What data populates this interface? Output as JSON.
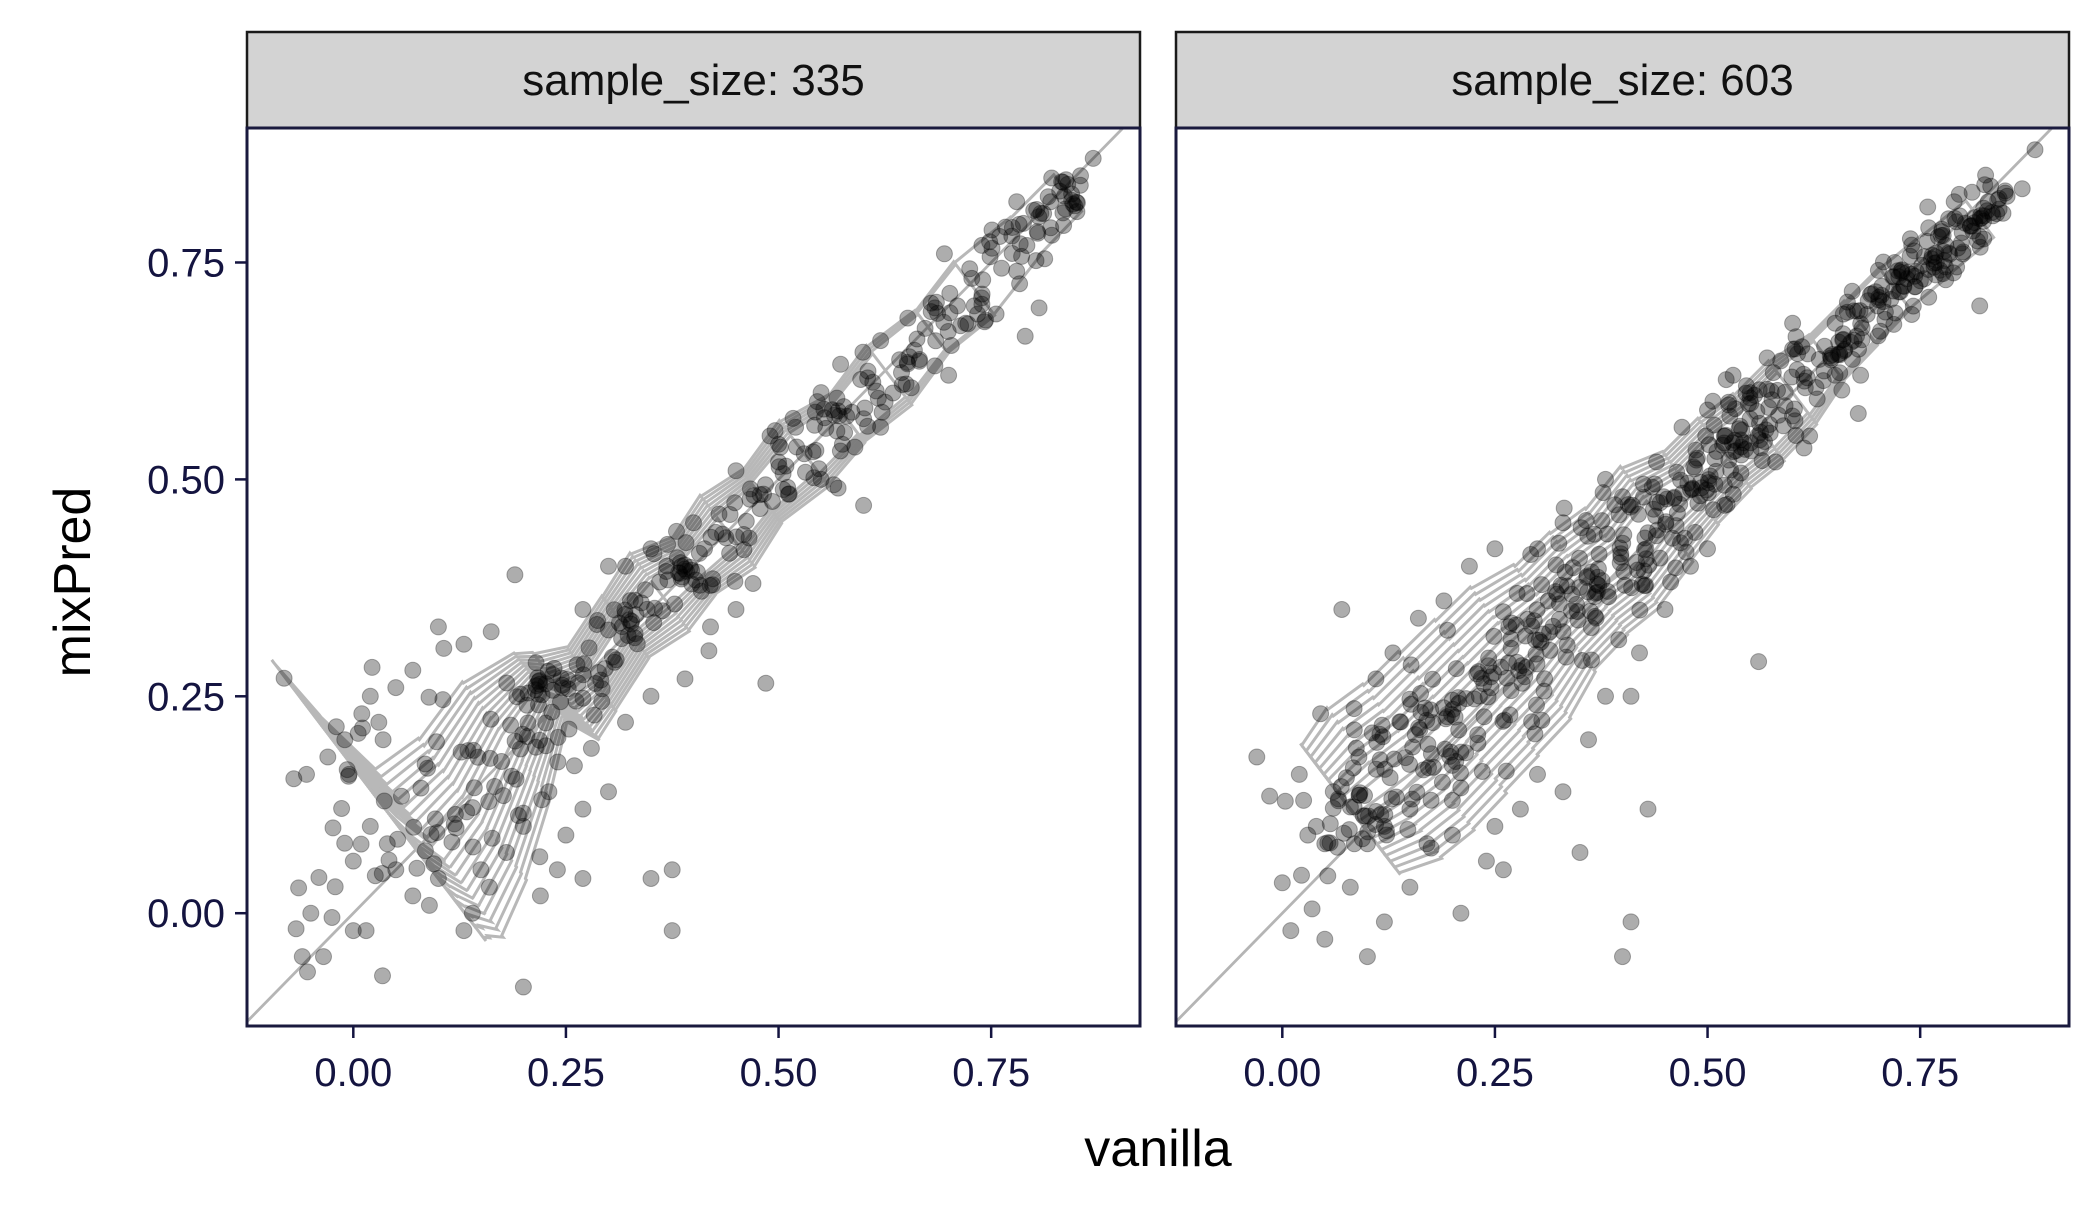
{
  "chart_data": {
    "type": "scatter",
    "facet_variable": "sample_size",
    "xlabel": "vanilla",
    "ylabel": "mixPred",
    "xlim": [
      -0.125,
      0.925
    ],
    "ylim": [
      -0.13,
      0.905
    ],
    "x_ticks": [
      0.0,
      0.25,
      0.5,
      0.75
    ],
    "x_tick_labels": [
      "0.00",
      "0.25",
      "0.50",
      "0.75"
    ],
    "y_ticks": [
      0.0,
      0.25,
      0.5,
      0.75
    ],
    "y_tick_labels": [
      "0.00",
      "0.25",
      "0.50",
      "0.75"
    ],
    "grid": false,
    "reference_line": "y = x",
    "overlay": "2d density contours",
    "colors": {
      "points": "#000000",
      "contours": "#b8b8b8",
      "strip_fill": "#d3d3d3",
      "reference_line": "#b5b5b5"
    },
    "panels": [
      {
        "strip_label": "sample_size: 335",
        "cluster": [
          [
            0.03,
            0.13,
            0.1
          ],
          [
            0.06,
            0.1,
            0.08
          ],
          [
            0.1,
            0.07,
            0.06
          ],
          [
            0.14,
            0.12,
            0.05
          ],
          [
            0.18,
            0.2,
            0.04
          ],
          [
            0.22,
            0.26,
            0.02
          ],
          [
            0.25,
            0.25,
            0.03
          ],
          [
            0.28,
            0.27,
            0.02
          ],
          [
            0.32,
            0.33,
            0.02
          ],
          [
            0.36,
            0.37,
            0.03
          ],
          [
            0.4,
            0.4,
            0.02
          ],
          [
            0.44,
            0.44,
            0.03
          ],
          [
            0.48,
            0.48,
            0.02
          ],
          [
            0.53,
            0.53,
            0.03
          ],
          [
            0.58,
            0.57,
            0.02
          ],
          [
            0.63,
            0.62,
            0.03
          ],
          [
            0.68,
            0.67,
            0.02
          ],
          [
            0.73,
            0.72,
            0.03
          ],
          [
            0.79,
            0.78,
            0.02
          ],
          [
            0.84,
            0.83,
            0.02
          ]
        ],
        "points": [
          [
            -0.07,
            0.155
          ],
          [
            -0.055,
            0.16
          ],
          [
            -0.06,
            -0.05
          ],
          [
            -0.05,
            0.0
          ],
          [
            -0.035,
            -0.05
          ],
          [
            -0.03,
            0.18
          ],
          [
            -0.02,
            0.215
          ],
          [
            -0.025,
            -0.005
          ],
          [
            -0.01,
            0.2
          ],
          [
            -0.005,
            0.16
          ],
          [
            0.0,
            0.06
          ],
          [
            0.0,
            -0.02
          ],
          [
            0.01,
            0.23
          ],
          [
            0.015,
            -0.02
          ],
          [
            0.02,
            0.25
          ],
          [
            0.03,
            0.22
          ],
          [
            0.05,
            0.26
          ],
          [
            0.07,
            0.28
          ],
          [
            0.1,
            0.33
          ],
          [
            0.13,
            0.31
          ],
          [
            0.19,
            0.39
          ],
          [
            0.14,
            0.0
          ],
          [
            0.13,
            -0.02
          ],
          [
            0.16,
            0.03
          ],
          [
            0.22,
            0.02
          ],
          [
            0.24,
            0.05
          ],
          [
            0.27,
            0.04
          ],
          [
            0.35,
            0.04
          ],
          [
            0.375,
            0.05
          ],
          [
            0.375,
            -0.02
          ],
          [
            0.2,
            -0.085
          ],
          [
            0.485,
            0.265
          ],
          [
            0.79,
            0.665
          ],
          [
            0.73,
            0.7
          ],
          [
            0.695,
            0.76
          ],
          [
            0.76,
            0.78
          ],
          [
            0.78,
            0.82
          ],
          [
            0.8,
            0.81
          ],
          [
            0.82,
            0.82
          ],
          [
            0.84,
            0.84
          ],
          [
            0.855,
            0.85
          ],
          [
            0.87,
            0.87
          ],
          [
            0.6,
            0.47
          ],
          [
            0.6,
            0.57
          ],
          [
            0.62,
            0.66
          ],
          [
            0.55,
            0.5
          ],
          [
            0.5,
            0.52
          ],
          [
            0.45,
            0.51
          ],
          [
            0.43,
            0.46
          ],
          [
            0.4,
            0.45
          ],
          [
            0.38,
            0.44
          ],
          [
            0.35,
            0.42
          ],
          [
            0.32,
            0.4
          ],
          [
            0.3,
            0.4
          ],
          [
            0.27,
            0.35
          ],
          [
            0.42,
            0.33
          ],
          [
            0.45,
            0.35
          ],
          [
            0.47,
            0.38
          ],
          [
            0.39,
            0.27
          ],
          [
            0.35,
            0.25
          ],
          [
            0.32,
            0.22
          ],
          [
            0.28,
            0.19
          ],
          [
            0.26,
            0.17
          ],
          [
            0.23,
            0.14
          ],
          [
            0.3,
            0.14
          ],
          [
            0.27,
            0.12
          ],
          [
            0.25,
            0.09
          ],
          [
            0.2,
            0.1
          ],
          [
            0.18,
            0.07
          ],
          [
            0.15,
            0.05
          ],
          [
            0.1,
            0.04
          ],
          [
            0.07,
            0.02
          ],
          [
            0.05,
            0.05
          ],
          [
            0.04,
            0.08
          ],
          [
            0.02,
            0.1
          ],
          [
            0.035,
            0.2
          ],
          [
            0.55,
            0.6
          ],
          [
            0.52,
            0.56
          ],
          [
            0.49,
            0.55
          ],
          [
            0.57,
            0.49
          ],
          [
            0.62,
            0.56
          ],
          [
            0.65,
            0.61
          ],
          [
            0.7,
            0.62
          ],
          [
            0.72,
            0.68
          ],
          [
            0.74,
            0.73
          ],
          [
            0.78,
            0.74
          ],
          [
            0.82,
            0.79
          ]
        ]
      },
      {
        "strip_label": "sample_size: 603",
        "cluster": [
          [
            0.08,
            0.12,
            0.04
          ],
          [
            0.12,
            0.15,
            0.05
          ],
          [
            0.16,
            0.18,
            0.05
          ],
          [
            0.2,
            0.22,
            0.05
          ],
          [
            0.24,
            0.26,
            0.05
          ],
          [
            0.28,
            0.3,
            0.05
          ],
          [
            0.32,
            0.34,
            0.04
          ],
          [
            0.36,
            0.38,
            0.04
          ],
          [
            0.4,
            0.41,
            0.04
          ],
          [
            0.44,
            0.46,
            0.04
          ],
          [
            0.48,
            0.49,
            0.03
          ],
          [
            0.52,
            0.53,
            0.03
          ],
          [
            0.56,
            0.56,
            0.03
          ],
          [
            0.6,
            0.6,
            0.03
          ],
          [
            0.64,
            0.64,
            0.02
          ],
          [
            0.68,
            0.68,
            0.02
          ],
          [
            0.72,
            0.72,
            0.02
          ],
          [
            0.77,
            0.76,
            0.02
          ],
          [
            0.82,
            0.8,
            0.02
          ]
        ],
        "points": [
          [
            -0.03,
            0.18
          ],
          [
            -0.015,
            0.135
          ],
          [
            0.0,
            0.035
          ],
          [
            0.01,
            -0.02
          ],
          [
            0.02,
            0.16
          ],
          [
            0.025,
            0.13
          ],
          [
            0.03,
            0.09
          ],
          [
            0.035,
            0.005
          ],
          [
            0.045,
            0.23
          ],
          [
            0.05,
            0.08
          ],
          [
            0.05,
            -0.03
          ],
          [
            0.07,
            0.35
          ],
          [
            0.08,
            0.03
          ],
          [
            0.1,
            -0.05
          ],
          [
            0.12,
            -0.01
          ],
          [
            0.15,
            0.03
          ],
          [
            0.17,
            0.08
          ],
          [
            0.2,
            0.09
          ],
          [
            0.21,
            0.0
          ],
          [
            0.24,
            0.06
          ],
          [
            0.26,
            0.05
          ],
          [
            0.33,
            0.14
          ],
          [
            0.35,
            0.07
          ],
          [
            0.4,
            -0.05
          ],
          [
            0.41,
            -0.01
          ],
          [
            0.43,
            0.12
          ],
          [
            0.41,
            0.25
          ],
          [
            0.56,
            0.29
          ],
          [
            0.52,
            0.47
          ],
          [
            0.55,
            0.57
          ],
          [
            0.57,
            0.64
          ],
          [
            0.6,
            0.65
          ],
          [
            0.65,
            0.68
          ],
          [
            0.68,
            0.62
          ],
          [
            0.7,
            0.7
          ],
          [
            0.72,
            0.75
          ],
          [
            0.74,
            0.69
          ],
          [
            0.76,
            0.71
          ],
          [
            0.78,
            0.73
          ],
          [
            0.8,
            0.76
          ],
          [
            0.82,
            0.7
          ],
          [
            0.82,
            0.78
          ],
          [
            0.83,
            0.82
          ],
          [
            0.85,
            0.83
          ],
          [
            0.87,
            0.835
          ],
          [
            0.885,
            0.88
          ],
          [
            0.79,
            0.82
          ],
          [
            0.76,
            0.79
          ],
          [
            0.74,
            0.77
          ],
          [
            0.4,
            0.48
          ],
          [
            0.38,
            0.5
          ],
          [
            0.33,
            0.45
          ],
          [
            0.3,
            0.42
          ],
          [
            0.25,
            0.42
          ],
          [
            0.22,
            0.4
          ],
          [
            0.19,
            0.36
          ],
          [
            0.16,
            0.34
          ],
          [
            0.13,
            0.3
          ],
          [
            0.11,
            0.27
          ],
          [
            0.48,
            0.4
          ],
          [
            0.5,
            0.42
          ],
          [
            0.45,
            0.35
          ],
          [
            0.42,
            0.3
          ],
          [
            0.38,
            0.25
          ],
          [
            0.36,
            0.2
          ],
          [
            0.3,
            0.16
          ],
          [
            0.28,
            0.12
          ],
          [
            0.25,
            0.1
          ],
          [
            0.2,
            0.13
          ],
          [
            0.15,
            0.12
          ],
          [
            0.12,
            0.1
          ],
          [
            0.1,
            0.08
          ],
          [
            0.55,
            0.6
          ],
          [
            0.58,
            0.52
          ],
          [
            0.62,
            0.55
          ],
          [
            0.65,
            0.62
          ],
          [
            0.6,
            0.68
          ],
          [
            0.53,
            0.62
          ],
          [
            0.5,
            0.58
          ],
          [
            0.47,
            0.56
          ],
          [
            0.44,
            0.52
          ],
          [
            0.06,
            0.14
          ],
          [
            0.09,
            0.18
          ],
          [
            0.04,
            0.1
          ]
        ]
      }
    ]
  }
}
